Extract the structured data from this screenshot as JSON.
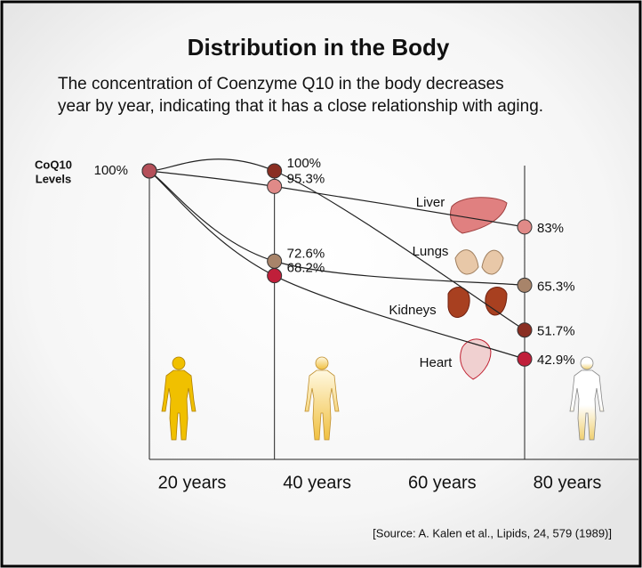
{
  "chart_data": {
    "type": "line",
    "title": "Distribution in the Body",
    "subtitle": [
      "The concentration of Coenzyme Q10 in the body decreases",
      "year by year, indicating that it has a close relationship with aging."
    ],
    "y_label": [
      "CoQ10",
      "Levels"
    ],
    "source": "[Source: A. Kalen et al., Lipids, 24, 579 (1989)]",
    "x": [
      20,
      40,
      80
    ],
    "xlim": [
      20,
      80
    ],
    "xticks": [
      {
        "value": 20,
        "label": "20 years"
      },
      {
        "value": 40,
        "label": "40 years"
      },
      {
        "value": 60,
        "label": "60 years"
      },
      {
        "value": 80,
        "label": "80 years"
      }
    ],
    "ylim": [
      40,
      100
    ],
    "yticks": [
      {
        "value": 100,
        "label": "100%"
      }
    ],
    "series": [
      {
        "name": "Liver",
        "color": "#e08a88",
        "values": [
          100,
          95.3,
          83
        ],
        "value_labels": [
          null,
          "95.3%",
          "83%"
        ]
      },
      {
        "name": "Lungs",
        "color": "#a8846a",
        "values": [
          100,
          72.6,
          65.3
        ],
        "value_labels": [
          null,
          "72.6%",
          "65.3%"
        ]
      },
      {
        "name": "Kidneys",
        "color": "#8a2e22",
        "values": [
          100,
          100,
          51.7
        ],
        "value_labels": [
          null,
          "100%",
          "51.7%"
        ]
      },
      {
        "name": "Heart",
        "color": "#c01f3a",
        "values": [
          100,
          68.2,
          42.9
        ],
        "value_labels": [
          null,
          "68.2%",
          "42.9%"
        ]
      }
    ]
  }
}
